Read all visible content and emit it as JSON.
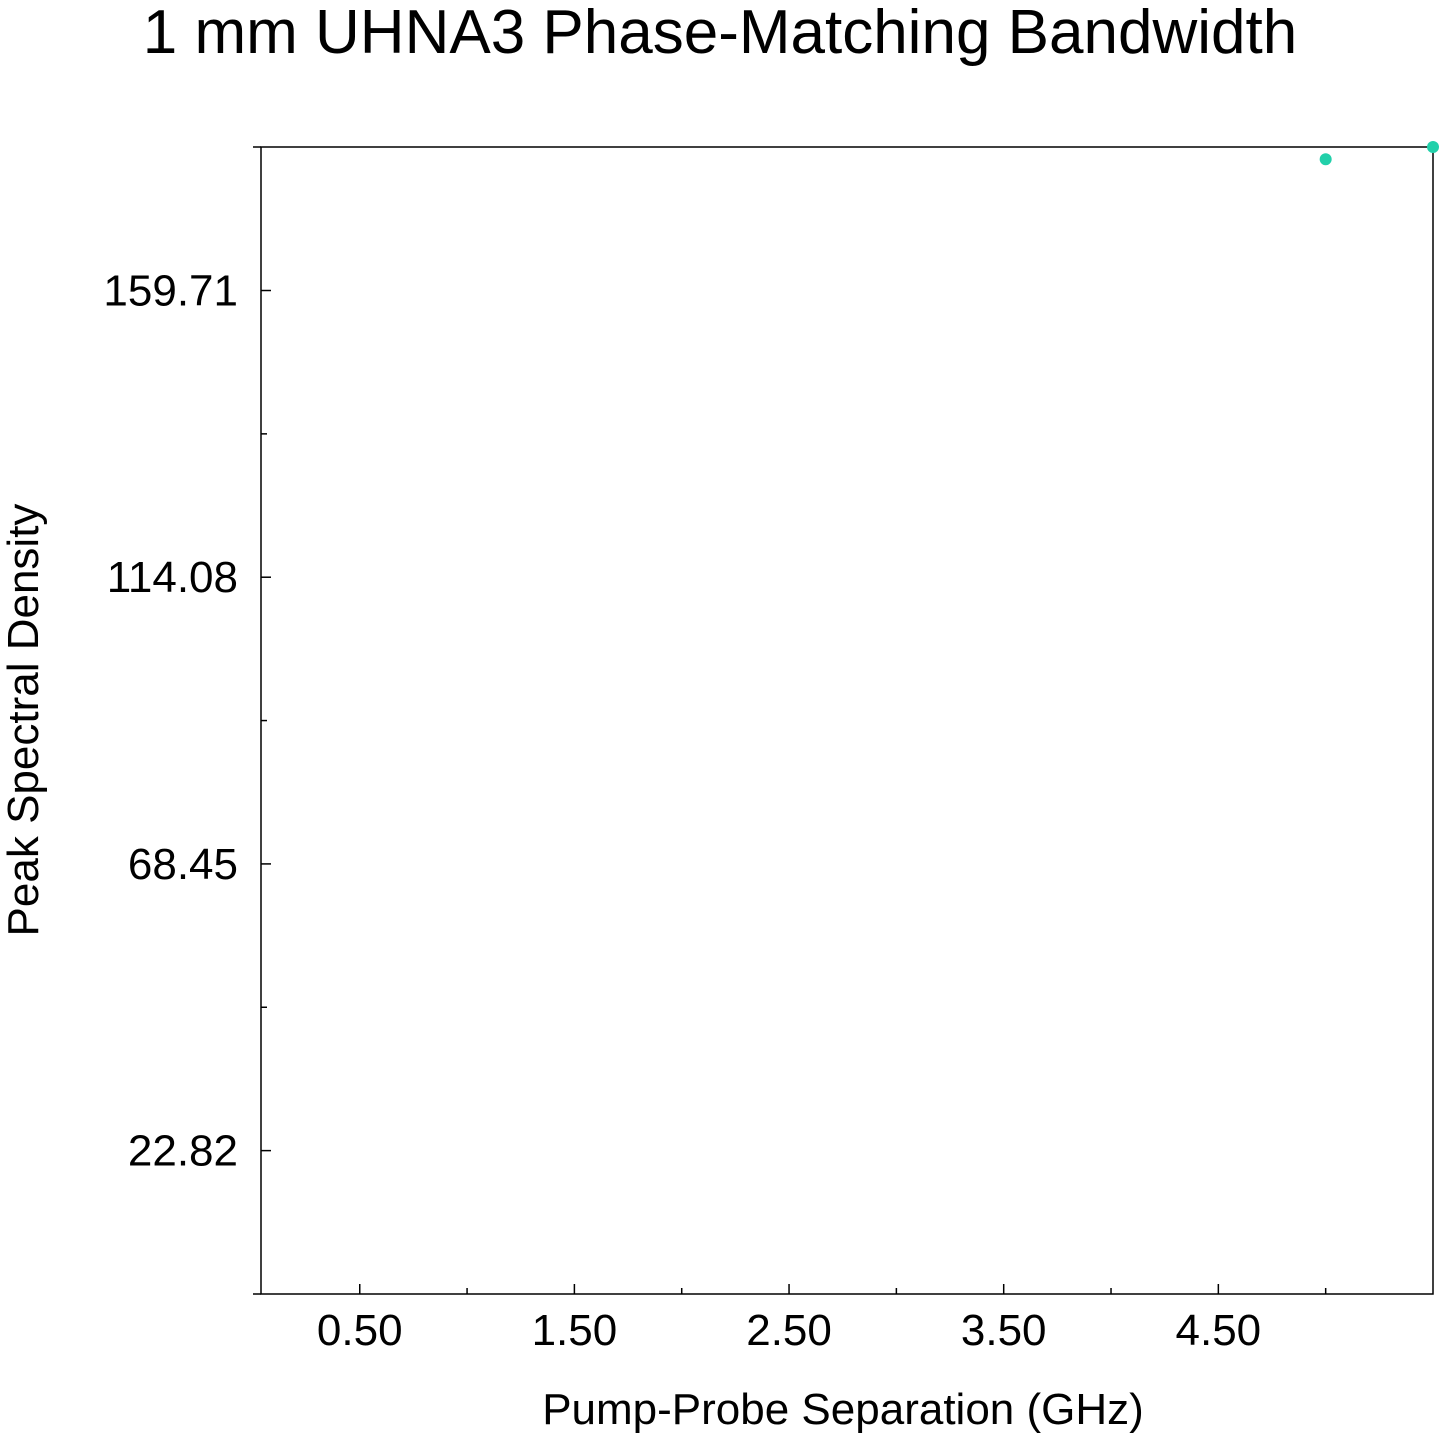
{
  "chart_data": {
    "type": "scatter",
    "title": "1 mm UHNA3 Phase-Matching Bandwidth",
    "xlabel": "Pump-Probe Separation (GHz)",
    "ylabel": "Peak Spectral Density",
    "xlim": [
      0.04,
      5.5
    ],
    "ylim": [
      0,
      182.55
    ],
    "x_ticks": [
      {
        "value": 0.5,
        "label": "0.50"
      },
      {
        "value": 1.5,
        "label": "1.50"
      },
      {
        "value": 2.5,
        "label": "2.50"
      },
      {
        "value": 3.5,
        "label": "3.50"
      },
      {
        "value": 4.5,
        "label": "4.50"
      }
    ],
    "x_minor_ticks": [
      1.0,
      2.0,
      3.0,
      4.0,
      5.0
    ],
    "y_ticks": [
      {
        "value": 22.82,
        "label": "22.82"
      },
      {
        "value": 68.45,
        "label": "68.45"
      },
      {
        "value": 114.08,
        "label": "114.08"
      },
      {
        "value": 159.71,
        "label": "159.71"
      }
    ],
    "y_minor_ticks": [
      45.635,
      91.265,
      136.895
    ],
    "grid": false,
    "series": [
      {
        "color": "#22d0aa",
        "points": [
          {
            "x": 5.0,
            "y": 180.6
          },
          {
            "x": 5.5,
            "y": 182.55
          }
        ]
      }
    ]
  }
}
